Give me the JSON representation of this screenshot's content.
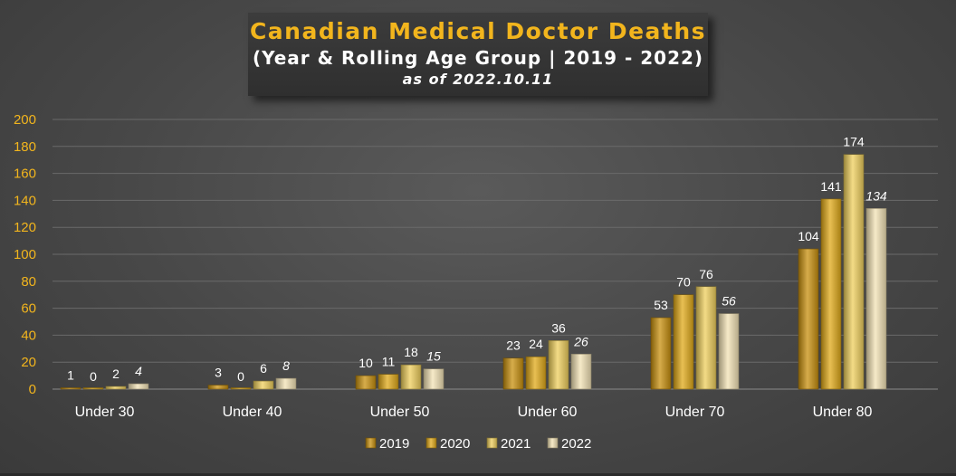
{
  "chart_data": {
    "type": "bar",
    "title": "Canadian Medical Doctor Deaths",
    "subtitle": "(Year & Rolling Age Group | 2019 - 2022)",
    "note": "as of 2022.10.11",
    "categories": [
      "Under 30",
      "Under 40",
      "Under 50",
      "Under 60",
      "Under 70",
      "Under 80"
    ],
    "series": [
      {
        "name": "2019",
        "values": [
          1,
          3,
          10,
          23,
          53,
          104
        ],
        "color": "#c8900f"
      },
      {
        "name": "2020",
        "values": [
          0,
          0,
          11,
          24,
          70,
          141
        ],
        "color": "#e0a919"
      },
      {
        "name": "2021",
        "values": [
          2,
          6,
          18,
          36,
          76,
          174
        ],
        "color": "#efcf5d"
      },
      {
        "name": "2022",
        "values": [
          4,
          8,
          15,
          26,
          56,
          134
        ],
        "color": "#f3e3b6"
      }
    ],
    "ylim": [
      0,
      200
    ],
    "yticks": [
      0,
      20,
      40,
      60,
      80,
      100,
      120,
      140,
      160,
      180,
      200
    ],
    "grid": true,
    "legend": "bottom-center",
    "italic_series": [
      "2022"
    ]
  }
}
